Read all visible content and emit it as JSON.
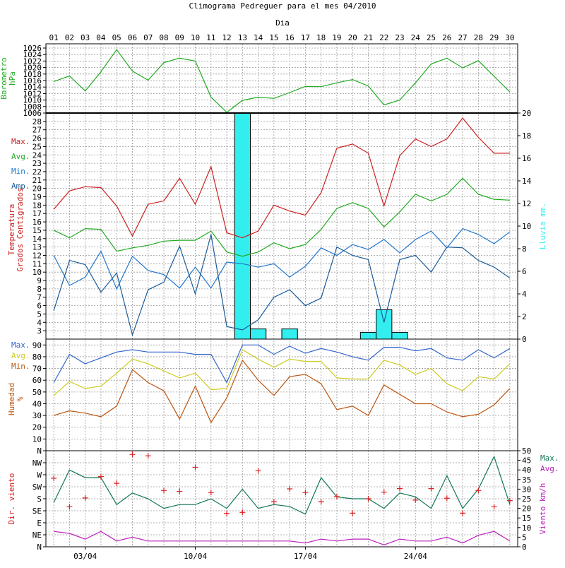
{
  "title": "Climograma Pedreguer para el mes 04/2010",
  "colors": {
    "pressure": "#22aa22",
    "tmax": "#cc2222",
    "tavg": "#22aa22",
    "tmin": "#2277cc",
    "tamp": "#1a5a99",
    "rain": "#33eeee",
    "hum_max": "#3366cc",
    "hum_avg": "#cccc22",
    "hum_min": "#bb5511",
    "wind_max": "#117755",
    "wind_avg": "#bb22bb",
    "wind_dir": "#dd2222",
    "grid": "#999999"
  },
  "chart_data": [
    {
      "type": "line",
      "name": "pressure",
      "title": "Climograma Pedreguer para el mes 04/2010",
      "xlabel": "Dia",
      "ylabel": "Barometro hPa",
      "x_tick_labels_top": [
        "01",
        "02",
        "03",
        "04",
        "05",
        "06",
        "07",
        "08",
        "09",
        "10",
        "11",
        "12",
        "13",
        "14",
        "15",
        "16",
        "17",
        "18",
        "19",
        "20",
        "21",
        "22",
        "23",
        "24",
        "25",
        "26",
        "27",
        "28",
        "29",
        "30"
      ],
      "ylim": [
        1006,
        1026
      ],
      "y_ticks": [
        "1006",
        "1008",
        "1010",
        "1012",
        "1014",
        "1016",
        "1018",
        "1020",
        "1022",
        "1024",
        "1026"
      ],
      "series": [
        {
          "name": "",
          "values": [
            1015.7,
            1017.4,
            1012.8,
            1018.7,
            1025.5,
            1018.9,
            1016.1,
            1021.5,
            1022.9,
            1022.0,
            1010.9,
            1006.2,
            1009.9,
            1010.9,
            1010.5,
            1012.3,
            1014.2,
            1014.1,
            1015.3,
            1016.3,
            1014.3,
            1008.5,
            1010.0,
            1015.3,
            1021.1,
            1022.9,
            1019.9,
            1022.1,
            1017.3,
            1012.5
          ]
        }
      ],
      "grid": true
    },
    {
      "type": "line",
      "name": "temperature",
      "ylabel": "Temperatura Grados Centigrados",
      "ylim": [
        2,
        29
      ],
      "y_ticks": [
        "3",
        "4",
        "5",
        "6",
        "7",
        "8",
        "9",
        "10",
        "11",
        "12",
        "13",
        "14",
        "15",
        "16",
        "17",
        "18",
        "19",
        "20",
        "21",
        "22",
        "23",
        "24",
        "25",
        "26",
        "27",
        "28"
      ],
      "y2label": "Lluvia mm.",
      "y2lim": [
        0,
        20
      ],
      "y2_ticks": [
        "0",
        "2",
        "4",
        "6",
        "8",
        "10",
        "12",
        "14",
        "16",
        "18",
        "20"
      ],
      "legend": [
        "Max.",
        "Avg.",
        "Min.",
        "Amp."
      ],
      "legend_placement": "left",
      "series": [
        {
          "name": "Max.",
          "values": [
            17.5,
            19.7,
            20.2,
            20.1,
            17.9,
            14.3,
            18.1,
            18.5,
            21.2,
            18.1,
            22.6,
            14.7,
            14.1,
            14.9,
            18.0,
            17.3,
            16.8,
            19.5,
            24.8,
            25.3,
            24.2,
            17.9,
            23.9,
            25.9,
            25.0,
            25.9,
            28.4,
            26.1,
            24.2,
            24.2
          ]
        },
        {
          "name": "Avg.",
          "values": [
            15.0,
            14.1,
            15.2,
            15.1,
            12.5,
            12.9,
            13.2,
            13.7,
            13.8,
            13.8,
            14.9,
            12.4,
            11.9,
            12.4,
            13.5,
            12.8,
            13.3,
            15.1,
            17.6,
            18.3,
            17.6,
            15.4,
            17.2,
            19.3,
            18.5,
            19.3,
            21.2,
            19.3,
            18.7,
            18.6
          ]
        },
        {
          "name": "Min.",
          "values": [
            12.0,
            8.4,
            9.4,
            12.5,
            8.0,
            11.9,
            10.2,
            9.7,
            8.1,
            10.6,
            8.1,
            11.2,
            11.0,
            10.6,
            11.0,
            9.4,
            10.7,
            12.9,
            12.0,
            13.3,
            12.7,
            13.9,
            12.3,
            13.9,
            14.9,
            12.9,
            15.2,
            14.5,
            13.4,
            14.8
          ]
        },
        {
          "name": "Amp.",
          "values": [
            5.4,
            11.4,
            10.9,
            7.6,
            9.9,
            2.5,
            7.9,
            8.8,
            13.1,
            7.4,
            14.5,
            3.5,
            3.1,
            4.3,
            7.0,
            7.9,
            6.0,
            6.9,
            13.0,
            12.0,
            11.5,
            4.0,
            11.5,
            12.0,
            10.0,
            13.0,
            12.9,
            11.4,
            10.6,
            9.3
          ]
        }
      ],
      "rain_series": {
        "name": "Lluvia",
        "values": [
          0,
          0,
          0,
          0,
          0,
          0,
          0,
          0,
          0,
          0,
          0,
          0,
          20,
          0.9,
          0,
          0.9,
          0,
          0,
          0,
          0,
          0.6,
          2.6,
          0.6,
          0,
          0,
          0,
          0,
          0,
          0,
          0
        ]
      },
      "grid": true
    },
    {
      "type": "line",
      "name": "humidity",
      "ylabel": "Humedad %",
      "ylim": [
        0,
        95
      ],
      "y_ticks": [
        "10",
        "20",
        "30",
        "40",
        "50",
        "60",
        "70",
        "80",
        "90"
      ],
      "legend": [
        "Max.",
        "Avg.",
        "Min."
      ],
      "legend_placement": "left",
      "series": [
        {
          "name": "Max.",
          "values": [
            58,
            82,
            74,
            79,
            84,
            86,
            84,
            84,
            84,
            82,
            82,
            58,
            90,
            90,
            82,
            89,
            83,
            87,
            84,
            80,
            77,
            88,
            88,
            85,
            87,
            79,
            77,
            86,
            79,
            87
          ]
        },
        {
          "name": "Avg.",
          "values": [
            47,
            59,
            53,
            55,
            66,
            78,
            74,
            68,
            62,
            66,
            52,
            53,
            86,
            78,
            71,
            78,
            76,
            76,
            62,
            61,
            61,
            77,
            73,
            65,
            70,
            57,
            51,
            63,
            61,
            74
          ]
        },
        {
          "name": "Min.",
          "values": [
            30,
            34,
            32,
            29,
            38,
            69,
            58,
            51,
            27,
            55,
            24,
            45,
            77,
            60,
            47,
            63,
            65,
            57,
            35,
            38,
            30,
            56,
            48,
            40,
            40,
            33,
            29,
            31,
            39,
            53
          ]
        }
      ],
      "grid": true
    },
    {
      "type": "scatter",
      "name": "wind",
      "ylabel": "Dir. viento",
      "y_ticks": [
        "N",
        "NE",
        "E",
        "SE",
        "S",
        "SW",
        "W",
        "NW",
        "N"
      ],
      "y2label": "Viento km/h",
      "y2lim": [
        0,
        50
      ],
      "y2_ticks": [
        "0",
        "5",
        "10",
        "15",
        "20",
        "25",
        "30",
        "35",
        "40",
        "45",
        "50"
      ],
      "x_tick_labels_bottom": [
        "03/04",
        "10/04",
        "17/04",
        "24/04"
      ],
      "legend": [
        "Max.",
        "Avg."
      ],
      "legend_placement": "right",
      "wind_dir_deg": [
        257,
        150,
        183,
        263,
        238,
        346,
        341,
        211,
        208,
        298,
        203,
        125,
        129,
        285,
        169,
        217,
        203,
        169,
        188,
        126,
        180,
        205,
        218,
        175,
        218,
        182,
        126,
        211,
        150,
        173
      ],
      "series": [
        {
          "name": "Max.",
          "values": [
            23,
            40,
            36,
            36,
            22,
            28,
            25,
            20,
            22,
            22,
            25,
            20,
            30,
            20,
            22,
            21,
            17,
            36,
            26,
            25,
            25,
            20,
            28,
            26,
            20,
            37,
            20,
            30,
            47,
            22
          ]
        },
        {
          "name": "Avg.",
          "values": [
            8,
            7,
            4,
            8,
            3,
            5,
            3,
            3,
            3,
            3,
            3,
            3,
            3,
            3,
            3,
            3,
            2,
            4,
            3,
            4,
            4,
            1,
            4,
            3,
            3,
            5,
            2,
            6,
            8,
            3
          ]
        }
      ],
      "grid": true
    }
  ]
}
